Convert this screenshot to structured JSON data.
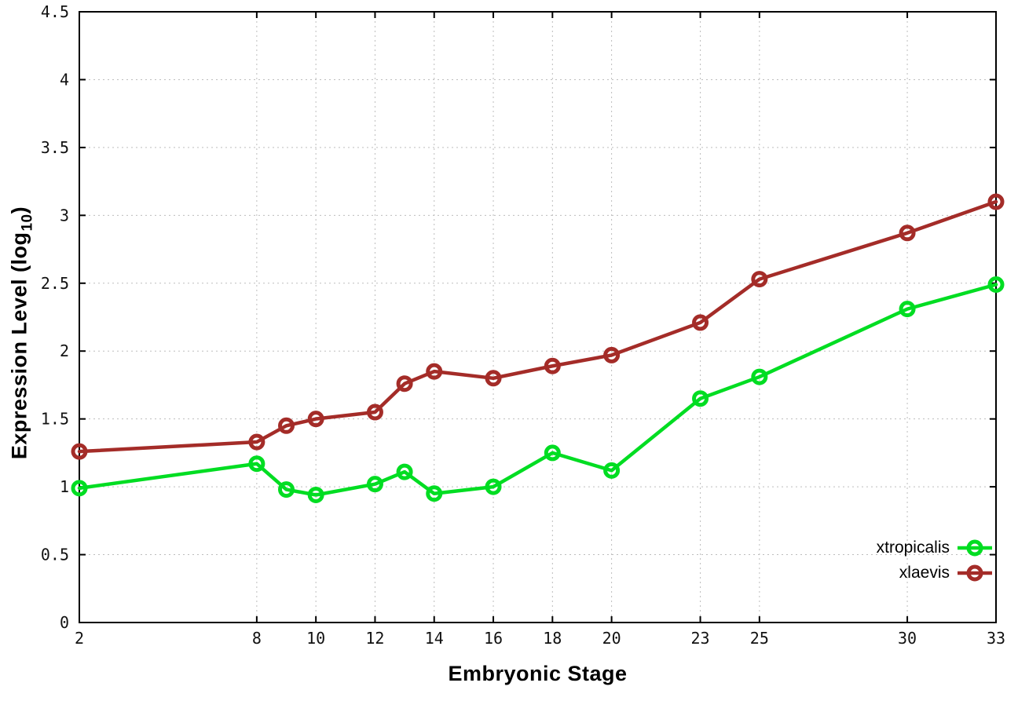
{
  "chart_data": {
    "type": "line",
    "title": "",
    "xlabel": "Embryonic Stage",
    "ylabel_prefix": "Expression Level (log",
    "ylabel_subscript": "10",
    "ylabel_suffix": ")",
    "x": [
      2,
      8,
      9,
      10,
      12,
      13,
      14,
      16,
      18,
      20,
      23,
      25,
      30,
      33
    ],
    "xtick_labels": [
      "2",
      "8",
      "10",
      "12",
      "14",
      "16",
      "18",
      "20",
      "23",
      "25",
      "30",
      "33"
    ],
    "ytick_labels": [
      "0",
      "0.5",
      "1",
      "1.5",
      "2",
      "2.5",
      "3",
      "3.5",
      "4",
      "4.5"
    ],
    "xlim": [
      2,
      33
    ],
    "ylim": [
      0,
      4.5
    ],
    "grid": "dotted both axes",
    "legend_position": "inside bottom-right",
    "series": [
      {
        "name": "xtropicalis",
        "color": "#00dd22",
        "marker": "open-circle",
        "values": [
          0.99,
          1.17,
          0.98,
          0.94,
          1.02,
          1.11,
          0.95,
          1.0,
          1.25,
          1.12,
          1.65,
          1.81,
          2.31,
          2.49
        ]
      },
      {
        "name": "xlaevis",
        "color": "#a42c28",
        "marker": "open-circle",
        "values": [
          1.26,
          1.33,
          1.45,
          1.5,
          1.55,
          1.76,
          1.85,
          1.8,
          1.89,
          1.97,
          2.21,
          2.53,
          2.87,
          3.1
        ]
      }
    ],
    "style_colors": {
      "grid": "#bdbdbd",
      "axis": "#000000",
      "tick_text": "#111111",
      "background": "#ffffff"
    }
  }
}
